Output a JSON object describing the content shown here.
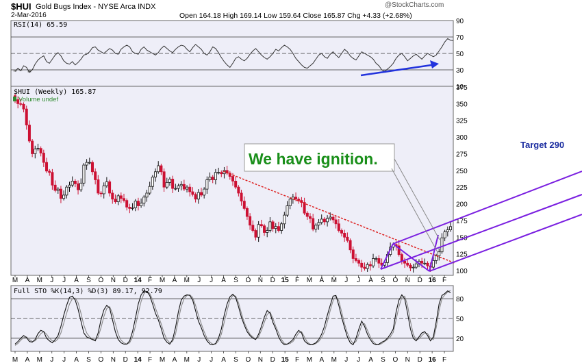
{
  "header": {
    "symbol": "$HUI",
    "name": "Gold Bugs Index - NYSE Arca INDX",
    "date": "2-Mar-2016",
    "ohlc": "Open 164.18  High 169.14  Low 159.64  Close 165.87  Chg +4.33 (+2.68%)",
    "copyright": "@StockCharts.com"
  },
  "colors": {
    "panel_bg": "#eeeef8",
    "up": "#111111",
    "down": "#cc1133",
    "channel": "#7a1fe0",
    "trend": "#dd2222",
    "arrow": "#2233dd",
    "callout_text": "#1a8f1a"
  },
  "annotations": {
    "ignition": "We have ignition.",
    "target": "Target 290"
  },
  "chart_data": [
    {
      "type": "line",
      "panel": "RSI",
      "title": "RSI(14) 65.59",
      "ylim": [
        10,
        90
      ],
      "yticks": [
        "10",
        "30",
        "50",
        "70",
        "90"
      ],
      "reference_lines": [
        30,
        50,
        70
      ],
      "values": [
        28,
        32,
        29,
        35,
        33,
        27,
        30,
        37,
        42,
        45,
        47,
        40,
        38,
        43,
        48,
        51,
        47,
        41,
        38,
        37,
        40,
        36,
        39,
        43,
        48,
        49,
        52,
        57,
        58,
        54,
        52,
        50,
        53,
        56,
        54,
        50,
        49,
        55,
        58,
        60,
        58,
        52,
        50,
        49,
        55,
        58,
        54,
        52,
        50,
        48,
        51,
        56,
        59,
        56,
        53,
        51,
        55,
        58,
        60,
        59,
        55,
        52,
        57,
        61,
        58,
        55,
        50,
        48,
        52,
        58,
        56,
        51,
        45,
        40,
        36,
        33,
        38,
        44,
        46,
        43,
        41,
        44,
        49,
        53,
        56,
        52,
        48,
        45,
        43,
        46,
        50,
        55,
        53,
        57,
        60,
        58,
        55,
        50,
        44,
        40,
        36,
        33,
        32,
        35,
        38,
        43,
        48,
        50,
        46,
        44,
        49,
        52,
        48,
        45,
        50,
        55,
        52,
        47,
        44,
        42,
        47,
        52,
        50,
        48,
        46,
        43,
        38,
        35,
        30,
        28,
        31,
        34,
        38,
        44,
        48,
        50,
        46,
        41,
        44,
        47,
        49,
        46,
        43,
        47,
        50,
        48,
        46,
        48,
        53,
        58,
        64,
        68,
        66,
        65.59
      ]
    },
    {
      "type": "candlestick",
      "panel": "price",
      "title": "$HUI (Weekly) 165.87",
      "legend": [
        "Volume undef"
      ],
      "ylim": [
        100,
        375
      ],
      "yticks": [
        "100",
        "125",
        "150",
        "175",
        "200",
        "225",
        "250",
        "275",
        "300",
        "325",
        "350",
        "375"
      ],
      "close": [
        356,
        350,
        349,
        342,
        318,
        294,
        275,
        282,
        283,
        276,
        262,
        249,
        247,
        228,
        220,
        222,
        208,
        213,
        225,
        228,
        234,
        230,
        221,
        231,
        258,
        262,
        262,
        248,
        236,
        216,
        215,
        227,
        233,
        216,
        207,
        203,
        212,
        208,
        205,
        195,
        193,
        194,
        204,
        197,
        201,
        210,
        216,
        226,
        240,
        248,
        257,
        248,
        225,
        232,
        237,
        223,
        223,
        227,
        229,
        222,
        225,
        218,
        214,
        207,
        217,
        213,
        222,
        236,
        240,
        236,
        247,
        247,
        245,
        250,
        246,
        241,
        234,
        225,
        216,
        204,
        193,
        181,
        168,
        160,
        150,
        169,
        167,
        157,
        160,
        173,
        163,
        166,
        160,
        170,
        183,
        197,
        207,
        210,
        207,
        205,
        202,
        186,
        181,
        178,
        162,
        168,
        172,
        177,
        173,
        178,
        180,
        176,
        170,
        160,
        156,
        150,
        145,
        131,
        118,
        115,
        111,
        105,
        103,
        109,
        107,
        118,
        118,
        111,
        108,
        112,
        124,
        135,
        139,
        137,
        124,
        114,
        111,
        108,
        104,
        105,
        110,
        114,
        111,
        111,
        107,
        105,
        115,
        122,
        128,
        149,
        158,
        161,
        165.87
      ],
      "last_close": 165.87,
      "annotations": [
        "We have ignition.",
        "Target 290"
      ]
    },
    {
      "type": "line",
      "panel": "STO",
      "title": "Full STO %K(14,3) %D(3) 89.17, 92.79",
      "ylim": [
        0,
        100
      ],
      "yticks": [
        "20",
        "50",
        "80"
      ],
      "reference_lines": [
        20,
        50,
        80
      ],
      "series": [
        {
          "name": "%K",
          "values": [
            11,
            15,
            20,
            24,
            21,
            15,
            14,
            18,
            27,
            32,
            30,
            20,
            16,
            13,
            18,
            24,
            38,
            55,
            70,
            82,
            84,
            78,
            64,
            46,
            28,
            22,
            20,
            18,
            16,
            28,
            48,
            63,
            70,
            66,
            48,
            30,
            18,
            13,
            11,
            11,
            16,
            30,
            50,
            72,
            86,
            92,
            91,
            85,
            72,
            58,
            48,
            35,
            20,
            14,
            11,
            18,
            36,
            60,
            78,
            84,
            86,
            85,
            78,
            62,
            46,
            36,
            24,
            16,
            11,
            10,
            12,
            20,
            34,
            55,
            72,
            83,
            87,
            82,
            68,
            52,
            40,
            30,
            24,
            20,
            18,
            26,
            38,
            52,
            62,
            58,
            44,
            34,
            22,
            14,
            10,
            11,
            14,
            18,
            26,
            32,
            28,
            16,
            12,
            10,
            11,
            13,
            18,
            26,
            38,
            55,
            70,
            84,
            85,
            70,
            52,
            36,
            22,
            13,
            10,
            20,
            34,
            46,
            38,
            26,
            18,
            12,
            10,
            11,
            14,
            16,
            20,
            26,
            34,
            60,
            78,
            86,
            80,
            58,
            34,
            20,
            16,
            22,
            28,
            30,
            24,
            16,
            22,
            45,
            72,
            85,
            88,
            92,
            89.17
          ]
        },
        {
          "name": "%D",
          "values": [
            9,
            12,
            17,
            21,
            22,
            18,
            15,
            16,
            21,
            27,
            30,
            26,
            20,
            16,
            15,
            19,
            28,
            43,
            58,
            72,
            80,
            81,
            74,
            58,
            40,
            28,
            22,
            19,
            17,
            22,
            36,
            53,
            65,
            68,
            58,
            42,
            26,
            17,
            13,
            11,
            13,
            22,
            38,
            58,
            76,
            88,
            91,
            88,
            79,
            66,
            54,
            42,
            28,
            18,
            13,
            15,
            26,
            48,
            68,
            80,
            85,
            86,
            82,
            70,
            55,
            42,
            30,
            20,
            14,
            11,
            11,
            16,
            26,
            44,
            62,
            78,
            85,
            84,
            74,
            58,
            44,
            34,
            26,
            22,
            19,
            22,
            32,
            44,
            56,
            60,
            50,
            38,
            28,
            18,
            12,
            11,
            12,
            15,
            21,
            28,
            30,
            22,
            14,
            11,
            10,
            12,
            15,
            21,
            30,
            45,
            62,
            77,
            84,
            77,
            60,
            42,
            28,
            18,
            12,
            15,
            26,
            40,
            42,
            32,
            22,
            15,
            11,
            10,
            12,
            15,
            18,
            22,
            29,
            48,
            68,
            82,
            84,
            70,
            46,
            26,
            18,
            19,
            24,
            28,
            27,
            20,
            18,
            36,
            62,
            80,
            86,
            90,
            92.79
          ]
        }
      ]
    }
  ],
  "x_axis": {
    "labels": [
      "M",
      "A",
      "M",
      "J",
      "J",
      "A",
      "S",
      "O",
      "N",
      "D",
      "14",
      "F",
      "M",
      "A",
      "M",
      "J",
      "J",
      "A",
      "S",
      "O",
      "N",
      "D",
      "15",
      "F",
      "M",
      "A",
      "M",
      "J",
      "J",
      "A",
      "S",
      "O",
      "N",
      "D",
      "16",
      "F"
    ]
  }
}
